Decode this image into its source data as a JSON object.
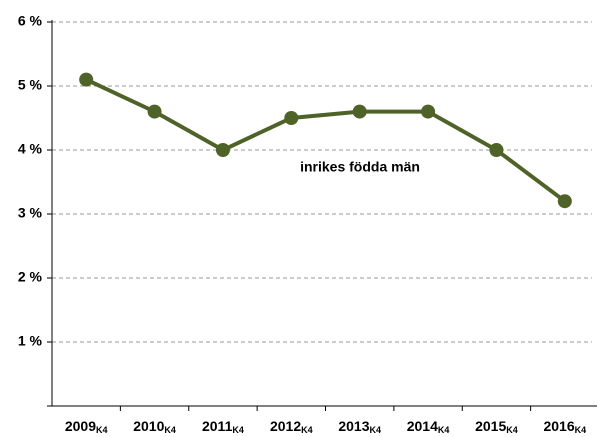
{
  "chart_data": {
    "type": "line",
    "categories": [
      "2009K4",
      "2010K4",
      "2011K4",
      "2012K4",
      "2013K4",
      "2014K4",
      "2015K4",
      "2016K4"
    ],
    "series": [
      {
        "name": "inrikes födda män",
        "color": "#4f6228",
        "values": [
          5.1,
          4.6,
          4.0,
          4.5,
          4.6,
          4.6,
          4.0,
          3.2
        ]
      }
    ],
    "ylim": [
      0,
      6
    ],
    "yticks": [
      {
        "value": 1,
        "label": "1 %"
      },
      {
        "value": 2,
        "label": "2 %"
      },
      {
        "value": 3,
        "label": "3 %"
      },
      {
        "value": 4,
        "label": "4 %"
      },
      {
        "value": 5,
        "label": "5 %"
      },
      {
        "value": 6,
        "label": "6 %"
      }
    ],
    "grid": true
  }
}
